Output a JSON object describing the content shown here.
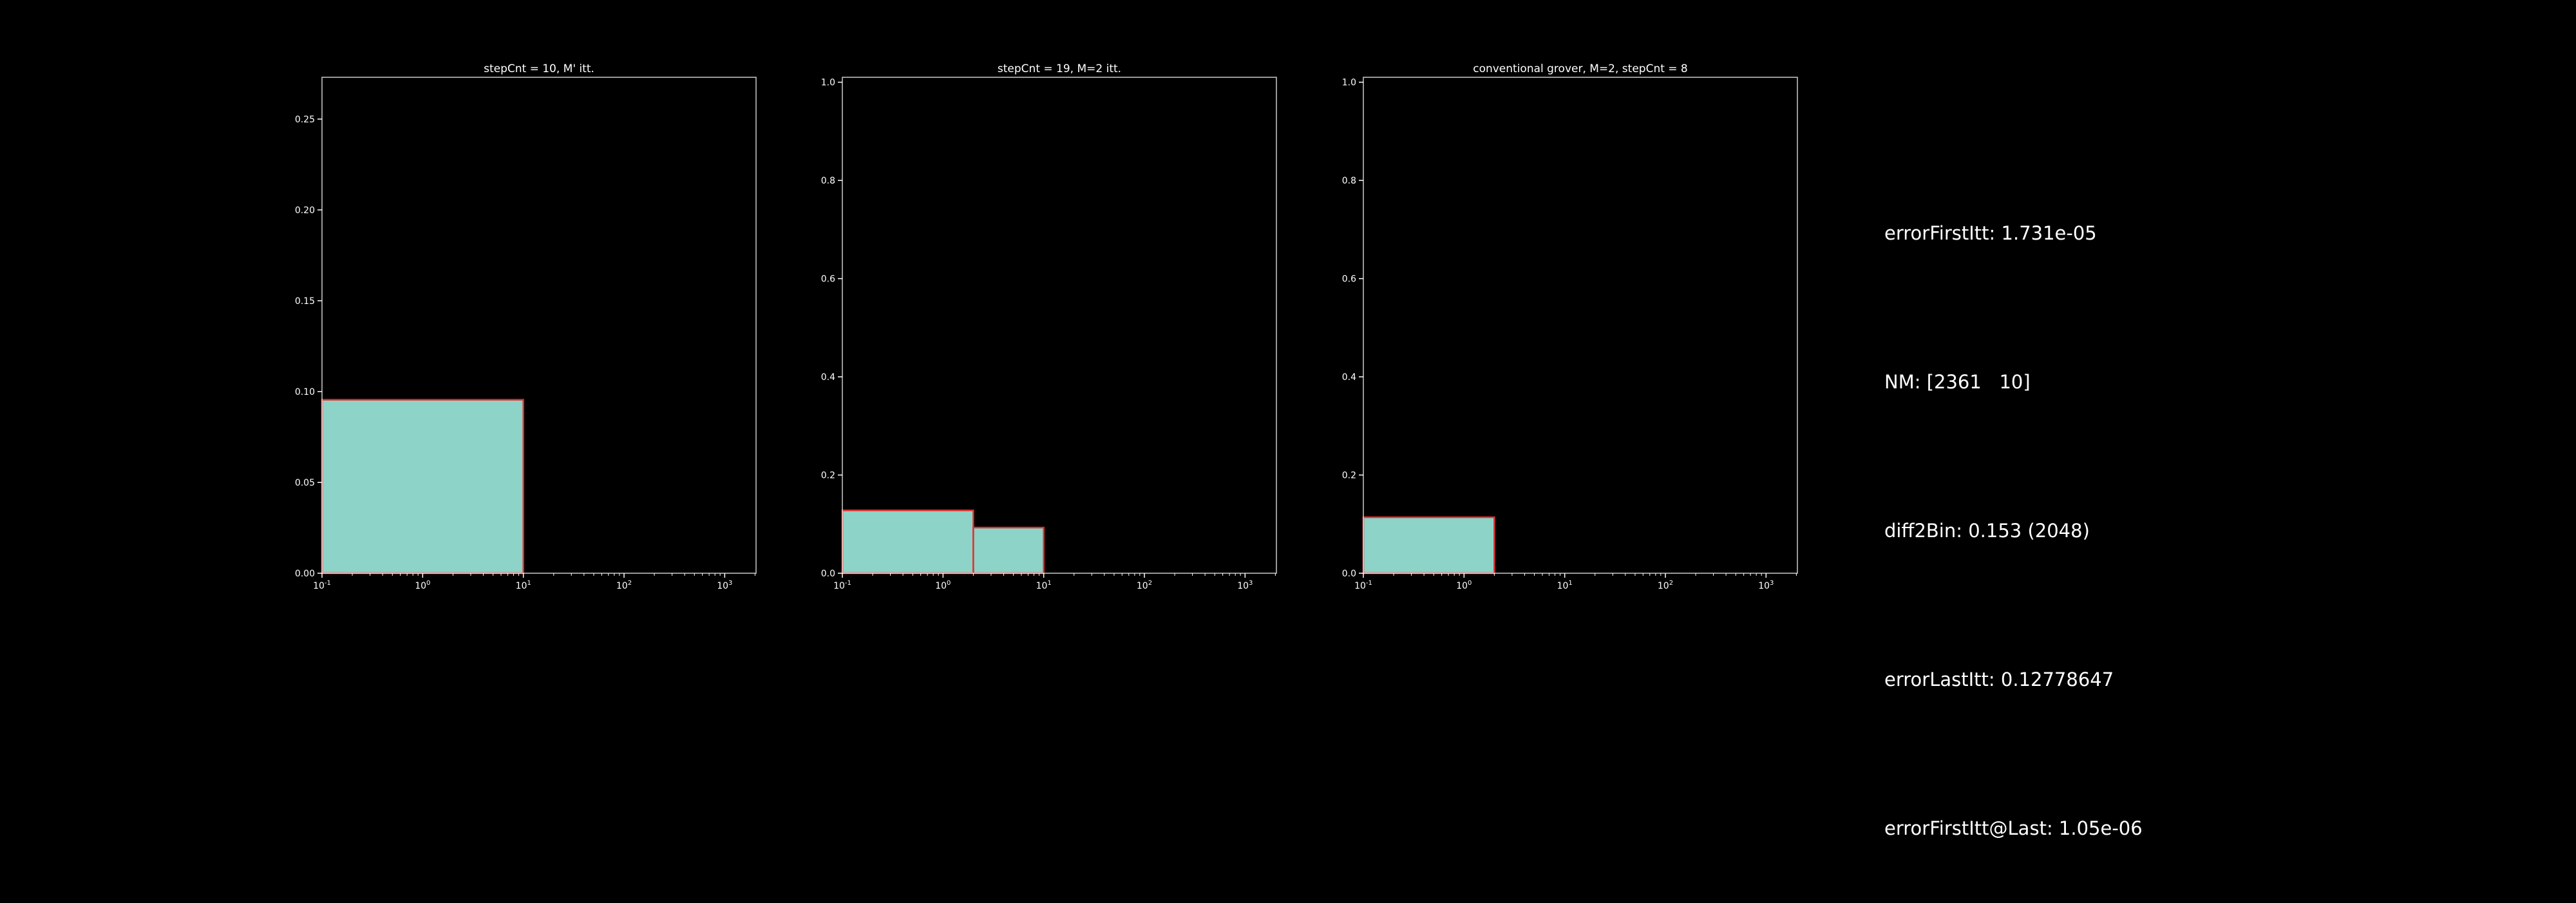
{
  "colors": {
    "background": "#000000",
    "bar_fill": "#8dd3c7",
    "bar_edge": "#e03030",
    "axes": "#ffffff",
    "text": "#ffffff"
  },
  "chart_data": [
    {
      "type": "histogram",
      "title": "stepCnt = 10, M' itt.",
      "xscale": "log",
      "xlim": [
        0.1,
        2048
      ],
      "ylim": [
        0,
        0.273
      ],
      "yticks": [
        0.0,
        0.05,
        0.1,
        0.15,
        0.2,
        0.25
      ],
      "ytick_labels": [
        "0.00",
        "0.05",
        "0.10",
        "0.15",
        "0.20",
        "0.25"
      ],
      "xticks": [
        0.1,
        1,
        10,
        100,
        1000
      ],
      "xtick_labels": [
        [
          "10",
          "-1"
        ],
        [
          "10",
          "0"
        ],
        [
          "10",
          "1"
        ],
        [
          "10",
          "2"
        ],
        [
          "10",
          "3"
        ]
      ],
      "bins": [
        {
          "x0": 0.1,
          "x1": 10,
          "value": 0.0955
        },
        {
          "x0": 10,
          "x1": 2048,
          "value": 0.0
        }
      ]
    },
    {
      "type": "histogram",
      "title": "stepCnt = 19, M=2 itt.",
      "xscale": "log",
      "xlim": [
        0.1,
        2048
      ],
      "ylim": [
        0,
        1.01
      ],
      "yticks": [
        0.0,
        0.2,
        0.4,
        0.6,
        0.8,
        1.0
      ],
      "ytick_labels": [
        "0.0",
        "0.2",
        "0.4",
        "0.6",
        "0.8",
        "1.0"
      ],
      "xticks": [
        0.1,
        1,
        10,
        100,
        1000
      ],
      "xtick_labels": [
        [
          "10",
          "-1"
        ],
        [
          "10",
          "0"
        ],
        [
          "10",
          "1"
        ],
        [
          "10",
          "2"
        ],
        [
          "10",
          "3"
        ]
      ],
      "bins": [
        {
          "x0": 0.1,
          "x1": 2,
          "value": 0.128
        },
        {
          "x0": 2,
          "x1": 10,
          "value": 0.093
        },
        {
          "x0": 10,
          "x1": 2048,
          "value": 0.0
        }
      ]
    },
    {
      "type": "histogram",
      "title": "conventional grover, M=2, stepCnt = 8",
      "xscale": "log",
      "xlim": [
        0.1,
        2048
      ],
      "ylim": [
        0,
        1.01
      ],
      "yticks": [
        0.0,
        0.2,
        0.4,
        0.6,
        0.8,
        1.0
      ],
      "ytick_labels": [
        "0.0",
        "0.2",
        "0.4",
        "0.6",
        "0.8",
        "1.0"
      ],
      "xticks": [
        0.1,
        1,
        10,
        100,
        1000
      ],
      "xtick_labels": [
        [
          "10",
          "-1"
        ],
        [
          "10",
          "0"
        ],
        [
          "10",
          "1"
        ],
        [
          "10",
          "2"
        ],
        [
          "10",
          "3"
        ]
      ],
      "bins": [
        {
          "x0": 0.1,
          "x1": 2,
          "value": 0.114
        },
        {
          "x0": 2,
          "x1": 2048,
          "value": 0.0
        }
      ]
    }
  ],
  "info_panel": {
    "lines": [
      "errorFirstItt: 1.731e-05",
      "NM: [2361   10]",
      "diff2Bin: 0.153 (2048)",
      "errorLastItt: 0.12778647",
      "errorFirstItt@Last: 1.05e-06"
    ]
  }
}
